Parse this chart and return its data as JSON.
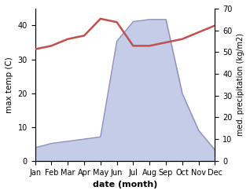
{
  "months": [
    "Jan",
    "Feb",
    "Mar",
    "Apr",
    "May",
    "Jun",
    "Jul",
    "Aug",
    "Sep",
    "Oct",
    "Nov",
    "Dec"
  ],
  "month_positions": [
    0,
    1,
    2,
    3,
    4,
    5,
    6,
    7,
    8,
    9,
    10,
    11
  ],
  "temp_vals": [
    33,
    34,
    36,
    37,
    42,
    41,
    34,
    34,
    35,
    36,
    38,
    40
  ],
  "precip_vals": [
    6,
    8,
    9,
    10,
    11,
    55,
    64,
    65,
    65,
    31,
    14,
    5
  ],
  "temp_color": "#c0504d",
  "precip_color": "#9090bb",
  "precip_fill_color": "#c5cce8",
  "ylabel_left": "max temp (C)",
  "ylabel_right": "med. precipitation (kg/m2)",
  "xlabel": "date (month)",
  "ylim_left": [
    0,
    45
  ],
  "ylim_right": [
    0,
    70
  ],
  "yticks_left": [
    0,
    10,
    20,
    30,
    40
  ],
  "yticks_right": [
    0,
    10,
    20,
    30,
    40,
    50,
    60,
    70
  ],
  "background_color": "#ffffff",
  "temp_linewidth": 1.8,
  "precip_linewidth": 1.0
}
